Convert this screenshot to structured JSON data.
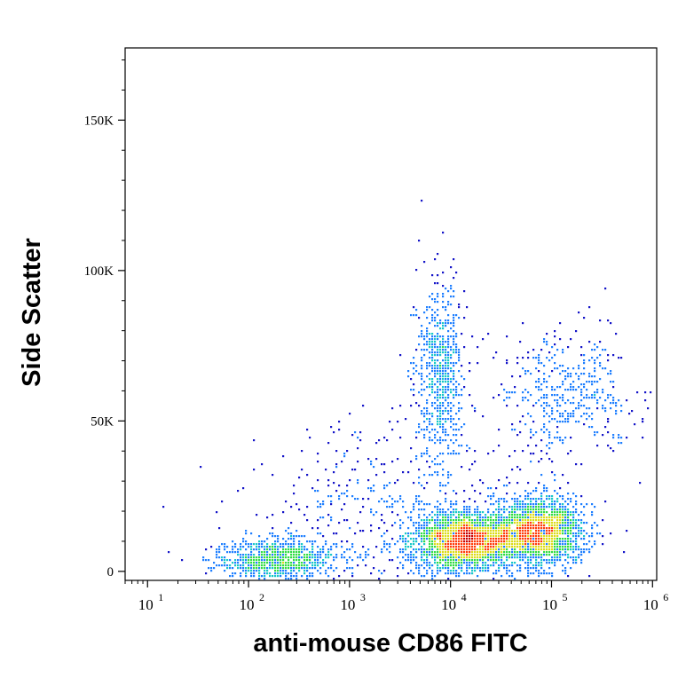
{
  "chart_data": {
    "type": "scatter",
    "subtype": "flow-cytometry-density-dot-plot",
    "title": "",
    "xlabel": "anti-mouse CD86 FITC",
    "ylabel": "Side Scatter",
    "x_scale": "log",
    "x_range": [
      6,
      1100000
    ],
    "y_range": [
      -3000,
      174000
    ],
    "x_ticks": [
      {
        "base": "10",
        "exp": "1",
        "value": 10
      },
      {
        "base": "10",
        "exp": "2",
        "value": 100
      },
      {
        "base": "10",
        "exp": "3",
        "value": 1000
      },
      {
        "base": "10",
        "exp": "4",
        "value": 10000
      },
      {
        "base": "10",
        "exp": "5",
        "value": 100000
      },
      {
        "base": "10",
        "exp": "6",
        "value": 1000000
      }
    ],
    "y_ticks": [
      {
        "label": "0",
        "value": 0
      },
      {
        "label": "50K",
        "value": 50000
      },
      {
        "label": "100K",
        "value": 100000
      },
      {
        "label": "150K",
        "value": 150000
      }
    ],
    "grid": false,
    "density_colors": [
      "#1414c8",
      "#1f7fff",
      "#19c8c8",
      "#32dc46",
      "#dcdc19",
      "#ff3c0a",
      "#c80000"
    ],
    "populations": [
      {
        "label": "",
        "x_center": 200,
        "y_center": 4000,
        "x_spread": 0.32,
        "y_spread": 3500,
        "count": 900,
        "peak_level": 3
      },
      {
        "label": "",
        "x_center": 15000,
        "y_center": 10000,
        "x_spread": 0.28,
        "y_spread": 5000,
        "count": 2400,
        "peak_level": 6
      },
      {
        "label": "",
        "x_center": 80000,
        "y_center": 13000,
        "x_spread": 0.22,
        "y_spread": 6000,
        "count": 1800,
        "peak_level": 4
      },
      {
        "label": "",
        "x_center": 8000,
        "y_center": 65000,
        "x_spread": 0.12,
        "y_spread": 15000,
        "count": 700,
        "peak_level": 2
      },
      {
        "label": "",
        "x_center": 150000,
        "y_center": 58000,
        "x_spread": 0.35,
        "y_spread": 10000,
        "count": 450,
        "peak_level": 2
      },
      {
        "label": "",
        "x_center": 3000,
        "y_center": 20000,
        "x_spread": 0.7,
        "y_spread": 14000,
        "count": 500,
        "peak_level": 1
      }
    ]
  }
}
